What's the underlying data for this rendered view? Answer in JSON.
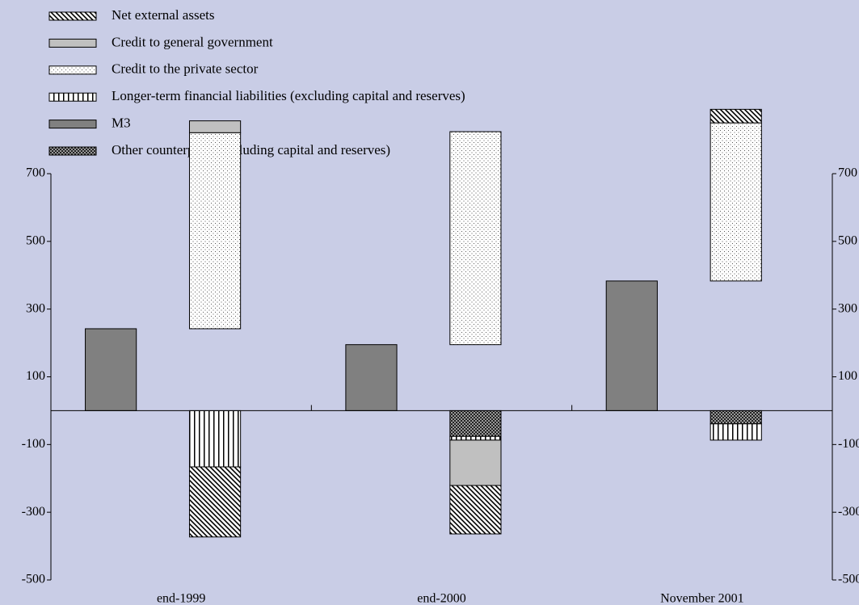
{
  "chart_data": {
    "type": "bar",
    "categories": [
      "end-1999",
      "end-2000",
      "November 2001"
    ],
    "series": [
      {
        "name": "Net external assets",
        "color": "#ffffff",
        "pattern": "diagonal",
        "stack": 1,
        "values": [
          -207,
          -143,
          40
        ]
      },
      {
        "name": "Credit to general government",
        "color": "#c0c0c0",
        "pattern": "solid",
        "stack": 1,
        "values": [
          35,
          -134,
          null
        ]
      },
      {
        "name": "Credit to the private sector",
        "color": "#ffffff",
        "pattern": "dots",
        "stack": 1,
        "values": [
          579,
          629,
          467
        ]
      },
      {
        "name": "Longer-term financial liabilities (excluding capital and reserves)",
        "color": "#ffffff",
        "pattern": "vertical",
        "stack": 1,
        "values": [
          -166,
          -11,
          -48
        ]
      },
      {
        "name": "M3",
        "color": "#808080",
        "pattern": "solid",
        "stack": 0,
        "values": [
          242,
          195,
          383
        ]
      },
      {
        "name": "Other counterparts (including capital and reserves)",
        "color": "#404040",
        "pattern": "checker",
        "stack": 1,
        "values": [
          null,
          -76,
          -39
        ]
      }
    ],
    "ylim": [
      -500,
      700
    ],
    "yticks": [
      700,
      500,
      300,
      100,
      -100,
      -300,
      -500
    ]
  }
}
